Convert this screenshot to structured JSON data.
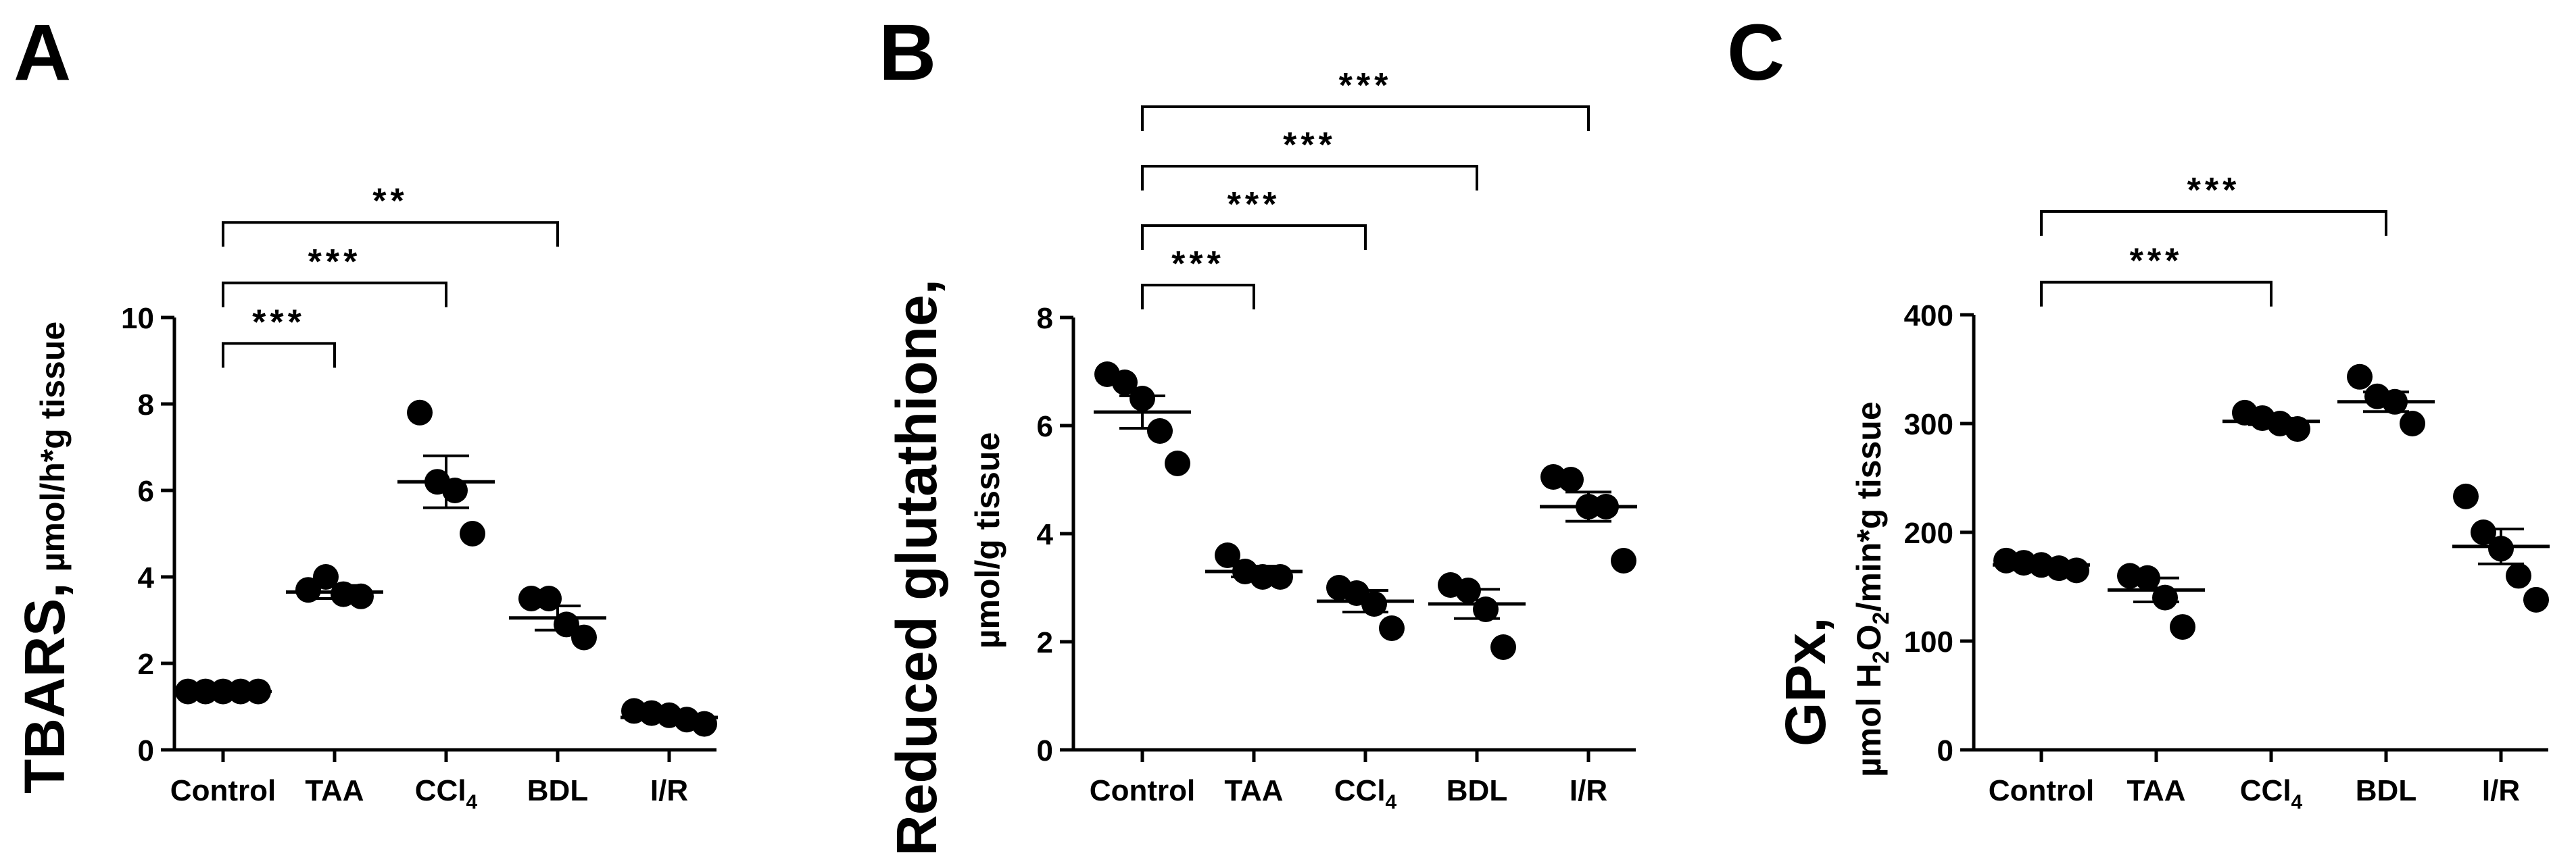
{
  "chart_data": [
    {
      "type": "scatter",
      "panel": "A",
      "ylabel_main": "TBARS,",
      "ylabel_unit": "µmol/h*g tissue",
      "categories": [
        "Control",
        "TAA",
        "CCl4",
        "BDL",
        "I/R"
      ],
      "category_labels": [
        {
          "base": "Control",
          "sub": ""
        },
        {
          "base": "TAA",
          "sub": ""
        },
        {
          "base": "CCl",
          "sub": "4"
        },
        {
          "base": "BDL",
          "sub": ""
        },
        {
          "base": "I/R",
          "sub": ""
        }
      ],
      "ylim": [
        0,
        10
      ],
      "yticks": [
        0,
        2,
        4,
        6,
        8,
        10
      ],
      "groups": [
        {
          "name": "Control",
          "points": [
            1.35,
            1.35,
            1.35,
            1.35,
            1.35
          ],
          "mean": 1.35,
          "sem": 0.02
        },
        {
          "name": "TAA",
          "points": [
            3.7,
            4.0,
            3.6,
            3.55
          ],
          "mean": 3.65,
          "sem": 0.15
        },
        {
          "name": "CCl4",
          "points": [
            7.8,
            6.2,
            6.0,
            5.0
          ],
          "mean": 6.2,
          "sem": 0.6
        },
        {
          "name": "BDL",
          "points": [
            3.5,
            3.5,
            2.9,
            2.6
          ],
          "mean": 3.05,
          "sem": 0.28
        },
        {
          "name": "I/R",
          "points": [
            0.9,
            0.85,
            0.8,
            0.7,
            0.6
          ],
          "mean": 0.75,
          "sem": 0.07
        }
      ],
      "significance": [
        {
          "from": "Control",
          "to": "TAA",
          "label": "***",
          "y": 9.4
        },
        {
          "from": "Control",
          "to": "CCl4",
          "label": "***",
          "y": 10.8
        },
        {
          "from": "Control",
          "to": "BDL",
          "label": "**",
          "y": 12.2
        }
      ]
    },
    {
      "type": "scatter",
      "panel": "B",
      "ylabel_main": "Reduced glutathione,",
      "ylabel_unit": "µmol/g tissue",
      "categories": [
        "Control",
        "TAA",
        "CCl4",
        "BDL",
        "I/R"
      ],
      "category_labels": [
        {
          "base": "Control",
          "sub": ""
        },
        {
          "base": "TAA",
          "sub": ""
        },
        {
          "base": "CCl",
          "sub": "4"
        },
        {
          "base": "BDL",
          "sub": ""
        },
        {
          "base": "I/R",
          "sub": ""
        }
      ],
      "ylim": [
        0,
        8
      ],
      "yticks": [
        0,
        2,
        4,
        6,
        8
      ],
      "groups": [
        {
          "name": "Control",
          "points": [
            6.95,
            6.8,
            6.5,
            5.9,
            5.3
          ],
          "mean": 6.25,
          "sem": 0.3
        },
        {
          "name": "TAA",
          "points": [
            3.6,
            3.3,
            3.2,
            3.2
          ],
          "mean": 3.3,
          "sem": 0.1
        },
        {
          "name": "CCl4",
          "points": [
            3.0,
            2.9,
            2.7,
            2.25
          ],
          "mean": 2.75,
          "sem": 0.2
        },
        {
          "name": "BDL",
          "points": [
            3.05,
            2.95,
            2.6,
            1.9
          ],
          "mean": 2.7,
          "sem": 0.27
        },
        {
          "name": "I/R",
          "points": [
            5.05,
            5.0,
            4.5,
            4.5,
            3.5
          ],
          "mean": 4.5,
          "sem": 0.27
        }
      ],
      "significance": [
        {
          "from": "Control",
          "to": "TAA",
          "label": "***",
          "y": 8.6
        },
        {
          "from": "Control",
          "to": "CCl4",
          "label": "***",
          "y": 9.7
        },
        {
          "from": "Control",
          "to": "BDL",
          "label": "***",
          "y": 10.8
        },
        {
          "from": "Control",
          "to": "I/R",
          "label": "***",
          "y": 11.9
        }
      ]
    },
    {
      "type": "scatter",
      "panel": "C",
      "ylabel_main": "GPx,",
      "ylabel_unit_parts": [
        "µmol H",
        "2",
        "O",
        "2",
        "/min*g tissue"
      ],
      "categories": [
        "Control",
        "TAA",
        "CCl4",
        "BDL",
        "I/R"
      ],
      "category_labels": [
        {
          "base": "Control",
          "sub": ""
        },
        {
          "base": "TAA",
          "sub": ""
        },
        {
          "base": "CCl",
          "sub": "4"
        },
        {
          "base": "BDL",
          "sub": ""
        },
        {
          "base": "I/R",
          "sub": ""
        }
      ],
      "ylim": [
        0,
        400
      ],
      "yticks": [
        0,
        100,
        200,
        300,
        400
      ],
      "groups": [
        {
          "name": "Control",
          "points": [
            174,
            172,
            170,
            167,
            165
          ],
          "mean": 170,
          "sem": 2
        },
        {
          "name": "TAA",
          "points": [
            160,
            158,
            140,
            113
          ],
          "mean": 147,
          "sem": 11
        },
        {
          "name": "CCl4",
          "points": [
            310,
            305,
            300,
            295
          ],
          "mean": 302,
          "sem": 3
        },
        {
          "name": "BDL",
          "points": [
            343,
            325,
            320,
            300
          ],
          "mean": 320,
          "sem": 9
        },
        {
          "name": "I/R",
          "points": [
            233,
            200,
            185,
            160,
            138
          ],
          "mean": 187,
          "sem": 16
        }
      ],
      "significance": [
        {
          "from": "Control",
          "to": "CCl4",
          "label": "***",
          "y": 430
        },
        {
          "from": "Control",
          "to": "BDL",
          "label": "***",
          "y": 495
        }
      ]
    }
  ]
}
